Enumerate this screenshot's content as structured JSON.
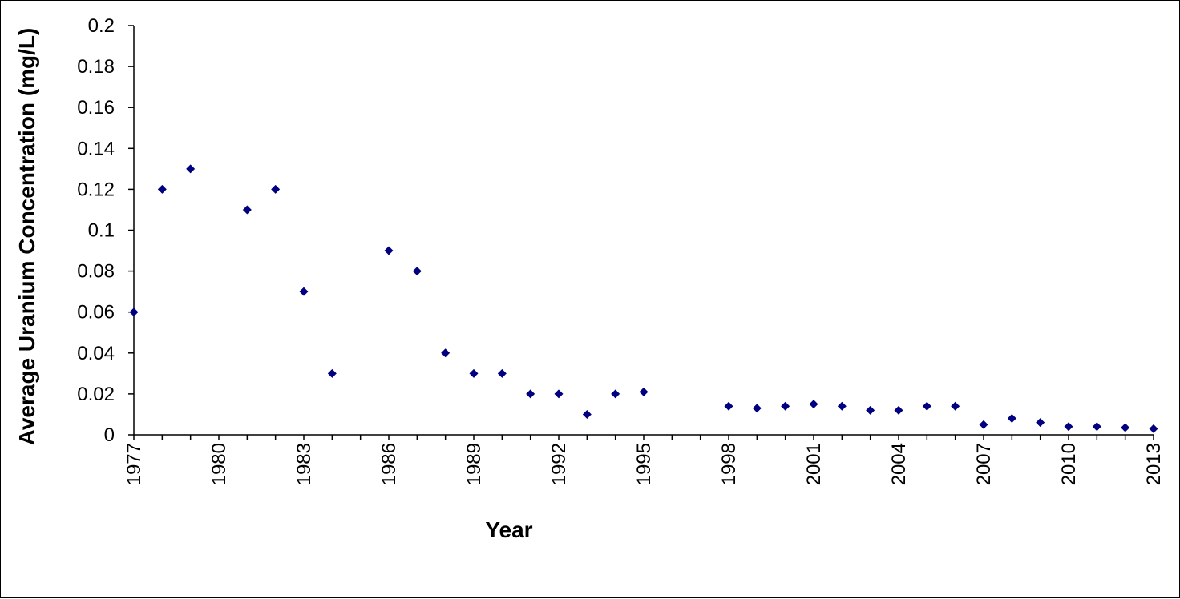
{
  "chart_data": {
    "type": "scatter",
    "title": "",
    "xlabel": "Year",
    "ylabel": "Average Uranium Concentration (mg/L)",
    "xlim": [
      1977,
      2013
    ],
    "ylim": [
      0,
      0.2
    ],
    "x_ticks": [
      "1977",
      "1980",
      "1983",
      "1986",
      "1989",
      "1992",
      "1995",
      "1998",
      "2001",
      "2004",
      "2007",
      "2010",
      "2013"
    ],
    "y_ticks": [
      "0",
      "0.02",
      "0.04",
      "0.06",
      "0.08",
      "0.1",
      "0.12",
      "0.14",
      "0.16",
      "0.18",
      "0.2"
    ],
    "grid": false,
    "legend": "none",
    "marker": "diamond",
    "marker_color": "#000080",
    "series": [
      {
        "x": [
          1977,
          1978,
          1979,
          1981,
          1982,
          1983,
          1984,
          1986,
          1987,
          1988,
          1989,
          1990,
          1991,
          1992,
          1993,
          1994,
          1995,
          1998,
          1999,
          2000,
          2001,
          2002,
          2003,
          2004,
          2005,
          2006,
          2007,
          2008,
          2009,
          2010,
          2011,
          2012,
          2013
        ],
        "y": [
          0.06,
          0.12,
          0.13,
          0.11,
          0.12,
          0.07,
          0.03,
          0.09,
          0.08,
          0.04,
          0.03,
          0.03,
          0.02,
          0.02,
          0.01,
          0.02,
          0.021,
          0.014,
          0.013,
          0.014,
          0.015,
          0.014,
          0.012,
          0.012,
          0.014,
          0.014,
          0.005,
          0.008,
          0.006,
          0.004,
          0.004,
          0.0035,
          0.003
        ]
      }
    ]
  }
}
